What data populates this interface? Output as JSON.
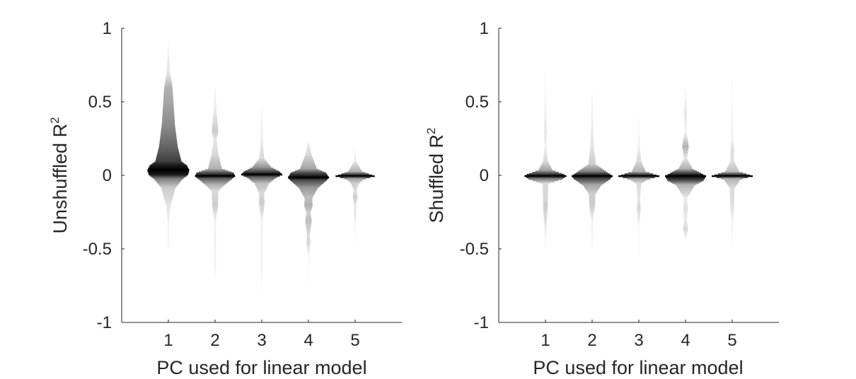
{
  "chart_data": [
    {
      "type": "violin",
      "ylabel": "Unshuffled R",
      "ylabel_sup": "2",
      "xlabel": "PC used for linear model",
      "xlim": [
        0,
        6
      ],
      "ylim": [
        -1,
        1
      ],
      "xticks": [
        "1",
        "2",
        "3",
        "4",
        "5"
      ],
      "yticks": [
        "1",
        "0.5",
        "0",
        "-0.5",
        "-1"
      ],
      "ytick_values": [
        1,
        0.5,
        0,
        -0.5,
        -1
      ],
      "grid": false,
      "violins": [
        {
          "x": 1,
          "profile": [
            [
              0.88,
              0.01,
              0.04
            ],
            [
              0.7,
              0.04,
              0.1
            ],
            [
              0.6,
              0.09,
              0.3
            ],
            [
              0.5,
              0.11,
              0.35
            ],
            [
              0.35,
              0.14,
              0.45
            ],
            [
              0.2,
              0.2,
              0.6
            ],
            [
              0.1,
              0.28,
              0.75
            ],
            [
              0.07,
              0.4,
              0.9
            ],
            [
              0.04,
              0.45,
              1
            ],
            [
              0.01,
              0.42,
              0.9
            ],
            [
              -0.02,
              0.3,
              0.5
            ],
            [
              -0.08,
              0.15,
              0.2
            ],
            [
              -0.2,
              0.05,
              0.1
            ],
            [
              -0.3,
              0.02,
              0.06
            ],
            [
              -0.5,
              0.01,
              0.03
            ]
          ]
        },
        {
          "x": 2,
          "profile": [
            [
              0.6,
              0.01,
              0.04
            ],
            [
              0.45,
              0.03,
              0.08
            ],
            [
              0.3,
              0.07,
              0.2
            ],
            [
              0.25,
              0.03,
              0.1
            ],
            [
              0.15,
              0.07,
              0.15
            ],
            [
              0.05,
              0.15,
              0.3
            ],
            [
              0.02,
              0.4,
              0.7
            ],
            [
              0.0,
              0.43,
              1
            ],
            [
              -0.02,
              0.35,
              0.6
            ],
            [
              -0.06,
              0.2,
              0.3
            ],
            [
              -0.1,
              0.07,
              0.15
            ],
            [
              -0.2,
              0.06,
              0.2
            ],
            [
              -0.3,
              0.02,
              0.06
            ],
            [
              -0.62,
              0.02,
              0.05
            ],
            [
              -0.7,
              0.005,
              0.02
            ]
          ]
        },
        {
          "x": 3,
          "profile": [
            [
              0.45,
              0.01,
              0.04
            ],
            [
              0.25,
              0.02,
              0.08
            ],
            [
              0.12,
              0.05,
              0.15
            ],
            [
              0.06,
              0.2,
              0.4
            ],
            [
              0.03,
              0.38,
              0.7
            ],
            [
              0.01,
              0.44,
              1
            ],
            [
              -0.01,
              0.3,
              0.6
            ],
            [
              -0.05,
              0.15,
              0.25
            ],
            [
              -0.12,
              0.05,
              0.15
            ],
            [
              -0.18,
              0.06,
              0.2
            ],
            [
              -0.3,
              0.02,
              0.06
            ],
            [
              -0.6,
              0.02,
              0.05
            ],
            [
              -0.8,
              0.005,
              0.02
            ]
          ]
        },
        {
          "x": 4,
          "profile": [
            [
              0.22,
              0.02,
              0.08
            ],
            [
              0.15,
              0.06,
              0.15
            ],
            [
              0.05,
              0.18,
              0.35
            ],
            [
              0.02,
              0.38,
              0.7
            ],
            [
              -0.01,
              0.44,
              1
            ],
            [
              -0.03,
              0.38,
              0.7
            ],
            [
              -0.08,
              0.2,
              0.4
            ],
            [
              -0.15,
              0.08,
              0.25
            ],
            [
              -0.2,
              0.09,
              0.3
            ],
            [
              -0.25,
              0.04,
              0.2
            ],
            [
              -0.3,
              0.07,
              0.25
            ],
            [
              -0.4,
              0.03,
              0.15
            ],
            [
              -0.45,
              0.04,
              0.15
            ],
            [
              -0.55,
              0.01,
              0.04
            ],
            [
              -0.75,
              0.005,
              0.02
            ]
          ]
        },
        {
          "x": 5,
          "profile": [
            [
              0.18,
              0.005,
              0.03
            ],
            [
              0.1,
              0.02,
              0.1
            ],
            [
              0.03,
              0.15,
              0.3
            ],
            [
              0.0,
              0.42,
              1
            ],
            [
              -0.02,
              0.18,
              0.35
            ],
            [
              -0.05,
              0.08,
              0.2
            ],
            [
              -0.1,
              0.03,
              0.12
            ],
            [
              -0.14,
              0.05,
              0.2
            ],
            [
              -0.2,
              0.02,
              0.1
            ],
            [
              -0.25,
              0.02,
              0.12
            ],
            [
              -0.35,
              0.005,
              0.04
            ],
            [
              -0.45,
              0.005,
              0.02
            ]
          ]
        }
      ]
    },
    {
      "type": "violin",
      "ylabel": "Shuffled R",
      "ylabel_sup": "2",
      "xlabel": "PC used for linear model",
      "xlim": [
        0,
        6
      ],
      "ylim": [
        -1,
        1
      ],
      "xticks": [
        "1",
        "2",
        "3",
        "4",
        "5"
      ],
      "yticks": [
        "1",
        "0.5",
        "0",
        "-0.5",
        "-1"
      ],
      "ytick_values": [
        1,
        0.5,
        0,
        -0.5,
        -1
      ],
      "grid": false,
      "violins": [
        {
          "x": 1,
          "profile": [
            [
              0.7,
              0.005,
              0.02
            ],
            [
              0.45,
              0.02,
              0.05
            ],
            [
              0.3,
              0.03,
              0.1
            ],
            [
              0.2,
              0.02,
              0.06
            ],
            [
              0.1,
              0.05,
              0.15
            ],
            [
              0.04,
              0.15,
              0.35
            ],
            [
              0.01,
              0.4,
              0.8
            ],
            [
              0.0,
              0.45,
              1
            ],
            [
              -0.02,
              0.35,
              0.5
            ],
            [
              -0.05,
              0.06,
              0.15
            ],
            [
              -0.16,
              0.05,
              0.15
            ],
            [
              -0.2,
              0.05,
              0.2
            ],
            [
              -0.26,
              0.04,
              0.15
            ],
            [
              -0.35,
              0.02,
              0.08
            ],
            [
              -0.5,
              0.005,
              0.03
            ]
          ]
        },
        {
          "x": 2,
          "profile": [
            [
              0.55,
              0.01,
              0.04
            ],
            [
              0.35,
              0.02,
              0.07
            ],
            [
              0.2,
              0.04,
              0.1
            ],
            [
              0.08,
              0.08,
              0.2
            ],
            [
              0.03,
              0.3,
              0.5
            ],
            [
              0.0,
              0.44,
              1
            ],
            [
              -0.02,
              0.38,
              0.7
            ],
            [
              -0.06,
              0.2,
              0.35
            ],
            [
              -0.12,
              0.07,
              0.2
            ],
            [
              -0.2,
              0.06,
              0.2
            ],
            [
              -0.3,
              0.02,
              0.06
            ],
            [
              -0.5,
              0.01,
              0.03
            ]
          ]
        },
        {
          "x": 3,
          "profile": [
            [
              0.4,
              0.005,
              0.03
            ],
            [
              0.2,
              0.02,
              0.06
            ],
            [
              0.1,
              0.05,
              0.15
            ],
            [
              0.03,
              0.15,
              0.3
            ],
            [
              0.0,
              0.44,
              1
            ],
            [
              -0.02,
              0.2,
              0.35
            ],
            [
              -0.05,
              0.05,
              0.15
            ],
            [
              -0.15,
              0.03,
              0.1
            ],
            [
              -0.22,
              0.04,
              0.15
            ],
            [
              -0.35,
              0.01,
              0.04
            ],
            [
              -0.55,
              0.005,
              0.02
            ]
          ]
        },
        {
          "x": 4,
          "profile": [
            [
              0.6,
              0.005,
              0.02
            ],
            [
              0.43,
              0.03,
              0.1
            ],
            [
              0.3,
              0.02,
              0.05
            ],
            [
              0.2,
              0.07,
              0.3
            ],
            [
              0.12,
              0.03,
              0.1
            ],
            [
              0.05,
              0.15,
              0.3
            ],
            [
              0.0,
              0.44,
              1
            ],
            [
              -0.03,
              0.38,
              0.7
            ],
            [
              -0.06,
              0.2,
              0.3
            ],
            [
              -0.15,
              0.03,
              0.08
            ],
            [
              -0.22,
              0.05,
              0.12
            ],
            [
              -0.3,
              0.03,
              0.08
            ],
            [
              -0.36,
              0.05,
              0.15
            ],
            [
              -0.42,
              0.02,
              0.05
            ]
          ]
        },
        {
          "x": 5,
          "profile": [
            [
              0.65,
              0.005,
              0.02
            ],
            [
              0.25,
              0.02,
              0.06
            ],
            [
              0.18,
              0.04,
              0.12
            ],
            [
              0.1,
              0.04,
              0.12
            ],
            [
              0.03,
              0.15,
              0.25
            ],
            [
              0.0,
              0.44,
              1
            ],
            [
              -0.02,
              0.18,
              0.3
            ],
            [
              -0.08,
              0.05,
              0.15
            ],
            [
              -0.2,
              0.04,
              0.12
            ],
            [
              -0.3,
              0.02,
              0.06
            ],
            [
              -0.5,
              0.005,
              0.02
            ]
          ]
        }
      ]
    }
  ]
}
